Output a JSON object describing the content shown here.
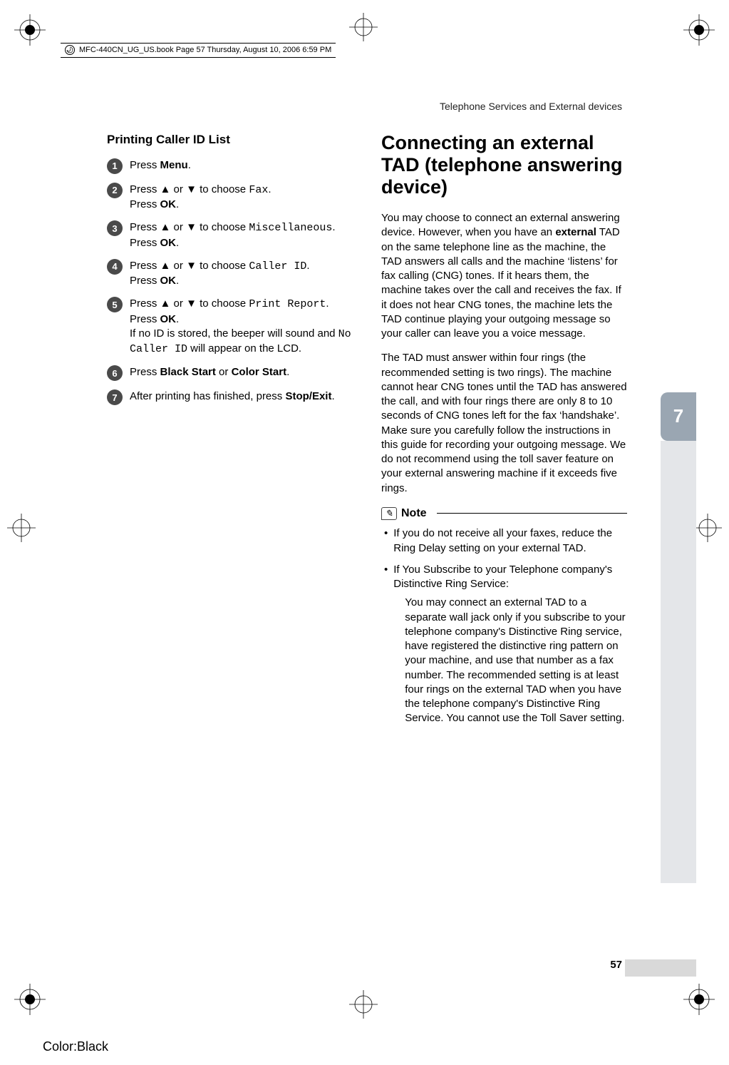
{
  "header_strip": "MFC-440CN_UG_US.book  Page 57  Thursday, August 10, 2006  6:59 PM",
  "chapter_header": "Telephone Services and External devices",
  "left": {
    "heading": "Printing Caller ID List",
    "steps": [
      {
        "n": "1",
        "html": "Press <b>Menu</b>."
      },
      {
        "n": "2",
        "html": "Press <span class='arrow'>▲</span> or <span class='arrow'>▼</span> to choose <span class='mono'>Fax</span>.<br>Press <b>OK</b>."
      },
      {
        "n": "3",
        "html": "Press <span class='arrow'>▲</span> or <span class='arrow'>▼</span> to choose <span class='mono'>Miscellaneous</span>.<br>Press <b>OK</b>."
      },
      {
        "n": "4",
        "html": "Press <span class='arrow'>▲</span> or <span class='arrow'>▼</span> to choose <span class='mono'>Caller ID</span>.<br>Press <b>OK</b>."
      },
      {
        "n": "5",
        "html": "Press <span class='arrow'>▲</span> or <span class='arrow'>▼</span> to choose <span class='mono'>Print Report</span>.<br>Press <b>OK</b>.<br>If no ID is stored, the beeper will sound and <span class='mono'>No Caller ID</span> will appear on the LCD."
      },
      {
        "n": "6",
        "html": "Press <b>Black Start</b> or <b>Color Start</b>."
      },
      {
        "n": "7",
        "html": "After printing has finished, press <b>Stop/Exit</b>."
      }
    ]
  },
  "right": {
    "heading": "Connecting an external TAD (telephone answering device)",
    "p1": "You may choose to connect an external answering device. However, when you have an <b>external</b> TAD on the same telephone line as the machine, the TAD answers all calls and the machine ‘listens’ for fax calling (CNG) tones. If it hears them, the machine takes over the call and receives the fax. If it does not hear CNG tones, the machine lets the TAD continue playing your outgoing message so your caller can leave you a voice message.",
    "p2": "The TAD must answer within four rings (the recommended setting is two rings). The machine cannot hear CNG tones until the TAD has answered the call, and with four rings there are only 8 to 10 seconds of CNG tones left for the fax ‘handshake’. Make sure you carefully follow the instructions in this guide for recording your outgoing message. We do not recommend using the toll saver feature on your external answering machine if it exceeds five rings.",
    "note_label": "Note",
    "note_items": [
      "If you do not receive all your faxes, reduce the Ring Delay setting on your external TAD.",
      "If You Subscribe to your Telephone company's Distinctive Ring Service:"
    ],
    "note_sub": "You may connect an external TAD to a separate wall jack only if you subscribe to your telephone company's Distinctive Ring service, have registered the distinctive ring pattern on your machine, and use that number as a fax number. The recommended setting is at least four rings on the external TAD when you have the telephone company's Distinctive Ring Service. You cannot use the Toll Saver setting."
  },
  "side_tab": "7",
  "page_number": "57",
  "color_label": "Color:Black",
  "colors": {
    "text": "#000000",
    "bg": "#ffffff",
    "stepnum_bg": "#4a4a4a",
    "tab_bg": "#9aa6b2",
    "tab_shadow": "#e4e6e9",
    "pagenum_bg": "#d9d9d9"
  },
  "fontsize": {
    "body": 15,
    "h1": 27,
    "h2": 17,
    "header_strip": 11,
    "chapter": 14,
    "side_tab": 26
  }
}
